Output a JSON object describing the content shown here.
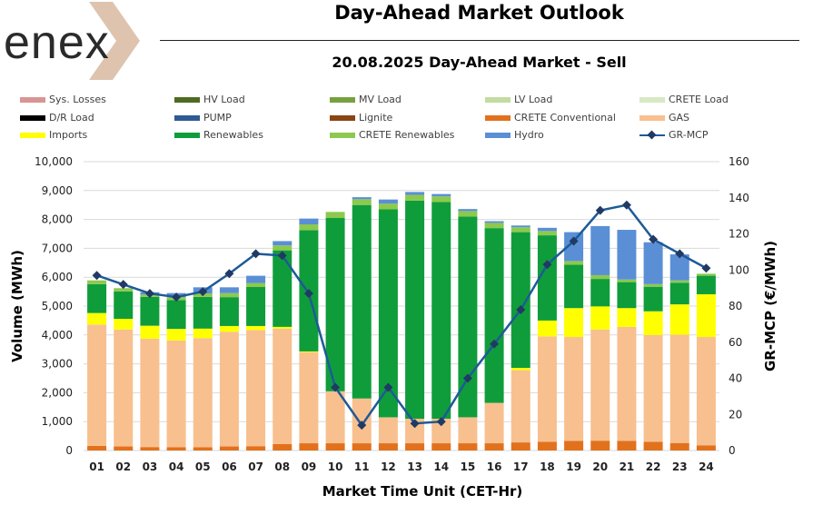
{
  "header": {
    "logo_text": "enex",
    "title": "Day-Ahead Market Outlook",
    "subtitle": "20.08.2025  Day-Ahead Market - Sell"
  },
  "colors": {
    "sys_losses": "#d99594",
    "hv_load": "#4e6b22",
    "mv_load": "#77a041",
    "lv_load": "#c3dba0",
    "crete_load": "#d8e8c4",
    "dr_load": "#000000",
    "pump": "#2e5b93",
    "lignite": "#8a4513",
    "crete_conventional": "#e2711d",
    "gas": "#f8c08e",
    "imports": "#ffff00",
    "renewables": "#0f9d3b",
    "crete_renewables": "#8cc94e",
    "hydro": "#5a8fd6",
    "gr_mcp": "#1f5a96",
    "gr_mcp_marker": "#203a64"
  },
  "legend": [
    {
      "key": "sys_losses",
      "label": "Sys. Losses"
    },
    {
      "key": "hv_load",
      "label": "HV Load"
    },
    {
      "key": "mv_load",
      "label": "MV Load"
    },
    {
      "key": "lv_load",
      "label": "LV Load"
    },
    {
      "key": "crete_load",
      "label": "CRETE Load"
    },
    {
      "key": "dr_load",
      "label": "D/R Load"
    },
    {
      "key": "pump",
      "label": "PUMP"
    },
    {
      "key": "lignite",
      "label": "Lignite"
    },
    {
      "key": "crete_conventional",
      "label": "CRETE Conventional"
    },
    {
      "key": "gas",
      "label": "GAS"
    },
    {
      "key": "imports",
      "label": "Imports"
    },
    {
      "key": "renewables",
      "label": "Renewables"
    },
    {
      "key": "crete_renewables",
      "label": "CRETE Renewables"
    },
    {
      "key": "hydro",
      "label": "Hydro"
    },
    {
      "key": "gr_mcp",
      "label": "GR-MCP",
      "line": true
    }
  ],
  "chart_data": {
    "type": "bar",
    "stacked": true,
    "title": "20.08.2025  Day-Ahead Market - Sell",
    "xlabel": "Market Time Unit (CET-Hr)",
    "ylabel": "Volume (MWh)",
    "y2label": "GR-MCP (€/MWh)",
    "ylim": [
      0,
      10000
    ],
    "y2lim": [
      0,
      160
    ],
    "yticks": [
      "0",
      "1,000",
      "2,000",
      "3,000",
      "4,000",
      "5,000",
      "6,000",
      "7,000",
      "8,000",
      "9,000",
      "10,000"
    ],
    "y2ticks": [
      "0",
      "20",
      "40",
      "60",
      "80",
      "100",
      "120",
      "140",
      "160"
    ],
    "categories": [
      "01",
      "02",
      "03",
      "04",
      "05",
      "06",
      "07",
      "08",
      "09",
      "10",
      "11",
      "12",
      "13",
      "14",
      "15",
      "16",
      "17",
      "18",
      "19",
      "20",
      "21",
      "22",
      "23",
      "24"
    ],
    "series": [
      {
        "name": "CRETE Conventional",
        "key": "crete_conventional",
        "values": [
          160,
          140,
          120,
          110,
          110,
          140,
          150,
          220,
          250,
          250,
          250,
          250,
          250,
          250,
          250,
          250,
          280,
          300,
          330,
          340,
          330,
          300,
          260,
          180
        ]
      },
      {
        "name": "GAS",
        "key": "gas",
        "values": [
          4200,
          4050,
          3750,
          3700,
          3780,
          3970,
          4020,
          4000,
          3150,
          1800,
          1550,
          900,
          850,
          850,
          900,
          1400,
          2500,
          3650,
          3600,
          3850,
          3950,
          3700,
          3750,
          3750
        ]
      },
      {
        "name": "Imports",
        "key": "imports",
        "values": [
          400,
          370,
          450,
          400,
          330,
          200,
          140,
          60,
          30,
          0,
          0,
          0,
          0,
          0,
          0,
          0,
          80,
          550,
          1000,
          800,
          650,
          820,
          1050,
          1480
        ]
      },
      {
        "name": "Renewables",
        "key": "renewables",
        "values": [
          1000,
          950,
          1000,
          1000,
          1100,
          1000,
          1350,
          2650,
          4200,
          6000,
          6700,
          7200,
          7550,
          7500,
          6950,
          6050,
          4700,
          2950,
          1500,
          950,
          900,
          850,
          750,
          640
        ]
      },
      {
        "name": "CRETE Renewables",
        "key": "crete_renewables",
        "values": [
          130,
          110,
          80,
          100,
          120,
          140,
          140,
          170,
          200,
          210,
          200,
          200,
          200,
          200,
          190,
          180,
          170,
          150,
          130,
          130,
          90,
          90,
          80,
          70
        ]
      },
      {
        "name": "Hydro",
        "key": "hydro",
        "values": [
          0,
          0,
          80,
          140,
          210,
          200,
          250,
          150,
          200,
          0,
          70,
          140,
          100,
          80,
          70,
          60,
          60,
          110,
          1000,
          1700,
          1720,
          1450,
          900,
          0
        ]
      }
    ],
    "line_series": {
      "name": "GR-MCP",
      "axis": "right",
      "values": [
        97,
        92,
        87,
        85,
        88,
        98,
        109,
        108,
        87,
        35,
        14,
        35,
        15,
        16,
        40,
        59,
        78,
        103,
        116,
        133,
        136,
        117,
        109,
        101
      ]
    }
  }
}
